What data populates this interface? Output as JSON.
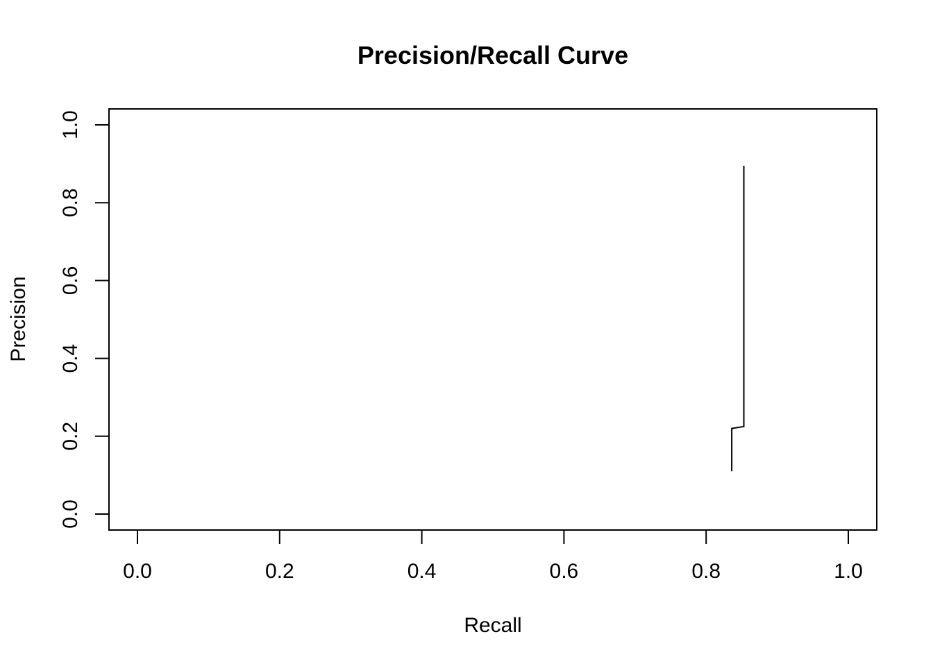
{
  "chart_data": {
    "type": "line",
    "title": "Precision/Recall Curve",
    "xlabel": "Recall",
    "ylabel": "Precision",
    "xlim": [
      0,
      1
    ],
    "ylim": [
      0,
      1
    ],
    "xticks": [
      "0.0",
      "0.2",
      "0.4",
      "0.6",
      "0.8",
      "1.0"
    ],
    "yticks": [
      "0.0",
      "0.2",
      "0.4",
      "0.6",
      "0.8",
      "1.0"
    ],
    "grid": false,
    "line_color": "#000000",
    "series": [
      {
        "x": [
          0.836,
          0.836,
          0.853,
          0.853
        ],
        "y": [
          0.11,
          0.22,
          0.225,
          0.895
        ]
      }
    ]
  }
}
